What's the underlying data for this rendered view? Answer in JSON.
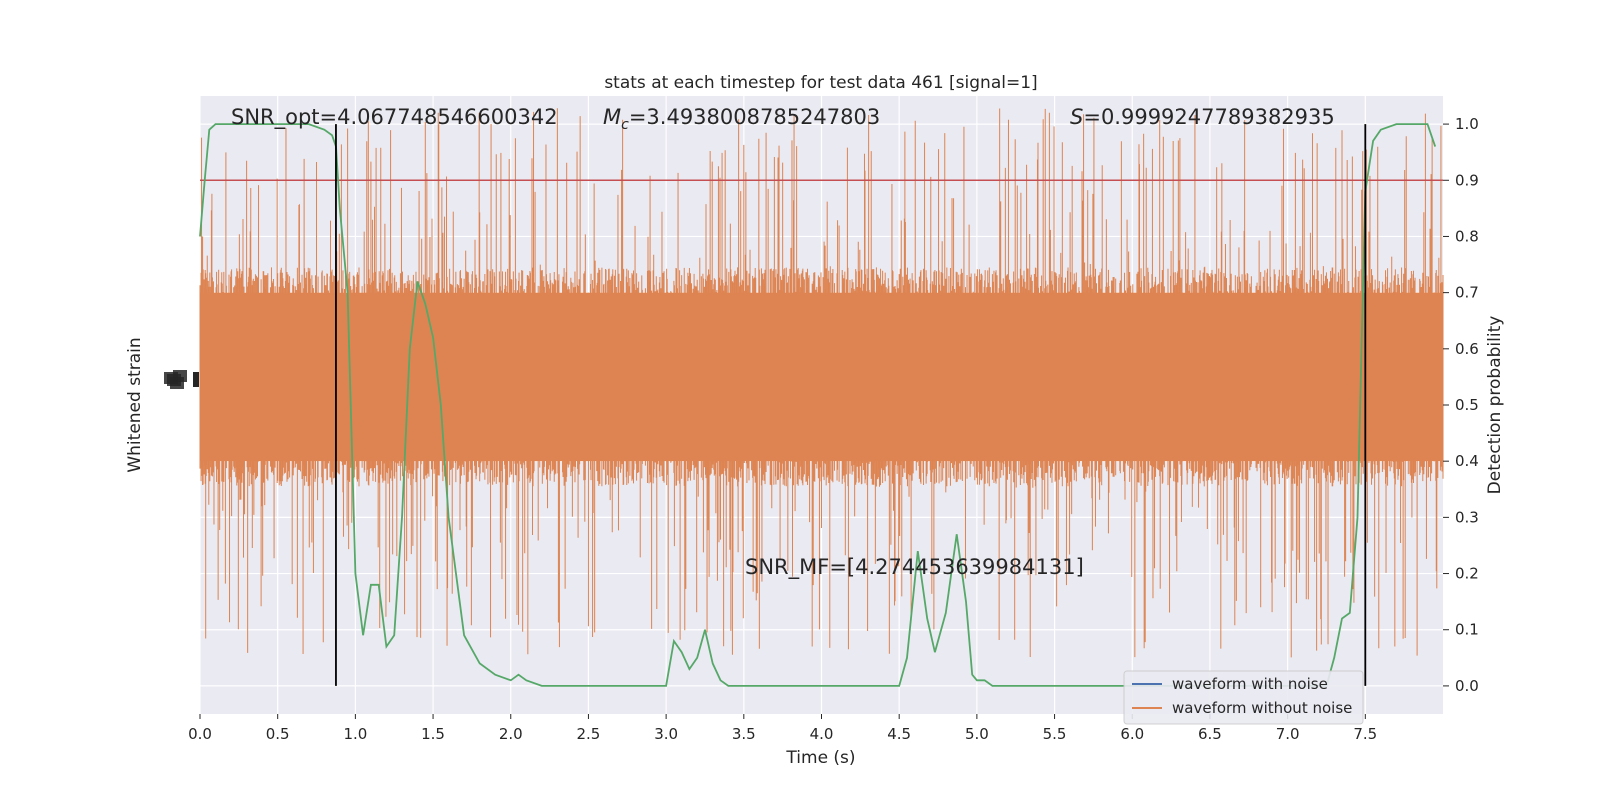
{
  "chart_data": {
    "type": "line",
    "title": "stats at each timestep for test data 461 [signal=1]",
    "xlabel": "Time (s)",
    "ylabel_left": "Whitened strain",
    "ylabel_right": "Detection probability",
    "xlim": [
      0.0,
      8.0
    ],
    "ylim_right": [
      -0.05,
      1.05
    ],
    "x_ticks": [
      "0.0",
      "0.5",
      "1.0",
      "1.5",
      "2.0",
      "2.5",
      "3.0",
      "3.5",
      "4.0",
      "4.5",
      "5.0",
      "5.5",
      "6.0",
      "6.5",
      "7.0",
      "7.5"
    ],
    "y_ticks_right": [
      "0.0",
      "0.1",
      "0.2",
      "0.3",
      "0.4",
      "0.5",
      "0.6",
      "0.7",
      "0.8",
      "0.9",
      "1.0"
    ],
    "annotations": {
      "snr_opt": "SNR_opt=4.067748546600342",
      "mc_symbol": "M",
      "mc_sub": "c",
      "mc_value": "=3.4938008785247803",
      "s_symbol": "S",
      "s_value": "=0.9999247789382935",
      "snr_mf": "SNR_MF=[4.274453639984131]"
    },
    "threshold": 0.9,
    "vlines": [
      0.875,
      7.5
    ],
    "legend": {
      "placement": "lower-right",
      "entries": [
        {
          "label": "waveform with noise",
          "color": "#4c72b0"
        },
        {
          "label": "waveform without noise",
          "color": "#dd8452"
        }
      ]
    },
    "colors": {
      "background": "#eaeaf2",
      "grid": "#ffffff",
      "noise": "#dd8452",
      "probability": "#55a868",
      "threshold": "#c44e52",
      "vline": "#000000"
    },
    "noise_band": {
      "typical_low": 0.4,
      "typical_high": 0.7,
      "max_peak": 1.03,
      "min_dip": 0.0
    },
    "probability_series": {
      "name": "",
      "x": [
        0.0,
        0.03,
        0.06,
        0.1,
        0.2,
        0.3,
        0.4,
        0.5,
        0.6,
        0.7,
        0.8,
        0.85,
        0.875,
        0.9,
        0.95,
        1.0,
        1.05,
        1.1,
        1.15,
        1.2,
        1.25,
        1.3,
        1.35,
        1.4,
        1.45,
        1.5,
        1.55,
        1.6,
        1.7,
        1.8,
        1.9,
        2.0,
        2.05,
        2.1,
        2.2,
        2.3,
        2.5,
        2.8,
        2.95,
        3.0,
        3.05,
        3.1,
        3.15,
        3.2,
        3.25,
        3.3,
        3.35,
        3.4,
        3.5,
        3.7,
        3.9,
        4.1,
        4.3,
        4.4,
        4.45,
        4.5,
        4.55,
        4.62,
        4.68,
        4.73,
        4.8,
        4.87,
        4.93,
        4.97,
        5.0,
        5.05,
        5.1,
        5.2,
        5.3,
        5.5,
        6.0,
        6.5,
        7.0,
        7.1,
        7.15,
        7.2,
        7.25,
        7.3,
        7.35,
        7.4,
        7.45,
        7.5,
        7.55,
        7.6,
        7.7,
        7.8,
        7.9,
        7.95
      ],
      "values": [
        0.8,
        0.9,
        0.99,
        1.0,
        1.0,
        1.0,
        1.0,
        1.0,
        1.0,
        1.0,
        0.99,
        0.98,
        0.96,
        0.85,
        0.7,
        0.2,
        0.09,
        0.18,
        0.18,
        0.07,
        0.09,
        0.3,
        0.6,
        0.72,
        0.68,
        0.62,
        0.5,
        0.3,
        0.09,
        0.04,
        0.02,
        0.01,
        0.02,
        0.01,
        0.0,
        0.0,
        0.0,
        0.0,
        0.0,
        0.0,
        0.08,
        0.06,
        0.03,
        0.05,
        0.1,
        0.04,
        0.01,
        0.0,
        0.0,
        0.0,
        0.0,
        0.0,
        0.0,
        0.0,
        0.0,
        0.0,
        0.05,
        0.24,
        0.12,
        0.06,
        0.13,
        0.27,
        0.15,
        0.02,
        0.01,
        0.01,
        0.0,
        0.0,
        0.0,
        0.0,
        0.0,
        0.0,
        0.0,
        0.0,
        0.0,
        0.0,
        0.0,
        0.05,
        0.12,
        0.13,
        0.3,
        0.88,
        0.97,
        0.99,
        1.0,
        1.0,
        1.0,
        0.96
      ]
    }
  }
}
